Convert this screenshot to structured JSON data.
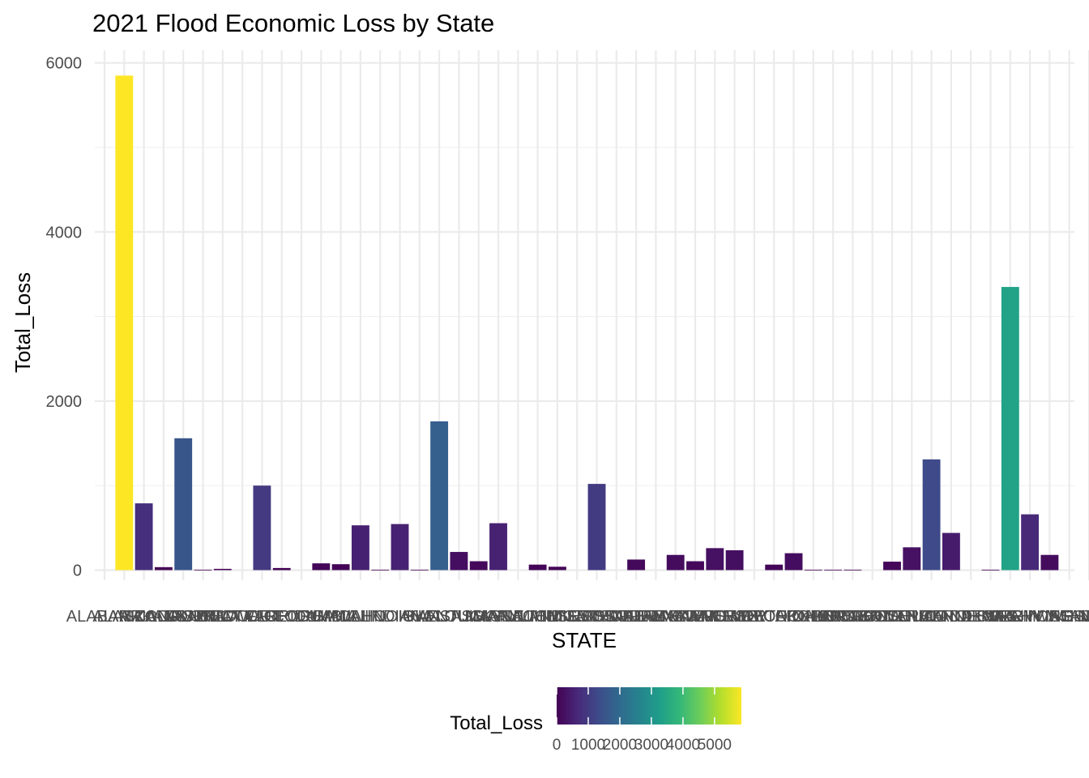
{
  "chart_data": {
    "type": "bar",
    "title": "2021 Flood Economic Loss by State",
    "xlabel": "STATE",
    "ylabel": "Total_Loss",
    "ylim": [
      -120,
      6150
    ],
    "y_ticks": [
      0,
      2000,
      4000,
      6000
    ],
    "grid": true,
    "categories": [
      "ALABAMA",
      "ALASKA",
      "ARIZONA",
      "ARKANSAS",
      "CALIFORNIA",
      "COLORADO",
      "CONNECTICUT",
      "DELAWARE",
      "DISTRICT OF COLUMBIA",
      "FLORIDA",
      "GEORGIA",
      "GUAM",
      "HAWAII",
      "IDAHO",
      "ILLINOIS",
      "INDIANA",
      "IOWA",
      "KANSAS",
      "KENTUCKY",
      "LOUISIANA",
      "MAINE",
      "MARYLAND",
      "MASSACHUSETTS",
      "MICHIGAN",
      "MINNESOTA",
      "MISSISSIPPI",
      "MISSOURI",
      "MONTANA",
      "NEBRASKA",
      "NEVADA",
      "NEW HAMPSHIRE",
      "NEW JERSEY",
      "NEW MEXICO",
      "NEW YORK",
      "NORTH CAROLINA",
      "NORTH DAKOTA",
      "OHIO",
      "OKLAHOMA",
      "OREGON",
      "PENNSYLVANIA",
      "PUERTO RICO",
      "RHODE ISLAND",
      "SOUTH CAROLINA",
      "SOUTH DAKOTA",
      "TENNESSEE",
      "TEXAS",
      "UTAH",
      "VERMONT",
      "VIRGIN ISLANDS",
      "VIRGINIA",
      "WASHINGTON",
      "WEST VIRGINIA",
      "WISCONSIN",
      "WYOMING"
    ],
    "values": [
      0,
      5850,
      790,
      35,
      1560,
      5,
      15,
      0,
      1000,
      25,
      0,
      80,
      70,
      530,
      5,
      545,
      5,
      1760,
      215,
      105,
      555,
      0,
      65,
      40,
      0,
      1020,
      0,
      125,
      0,
      180,
      105,
      260,
      235,
      0,
      65,
      200,
      5,
      5,
      5,
      0,
      100,
      270,
      1310,
      440,
      0,
      5,
      3350,
      660,
      180,
      0,
      0,
      0,
      0,
      0
    ],
    "legend": {
      "title": "Total_Loss",
      "placement": "bottom",
      "type": "colorbar",
      "palette": [
        "#440154",
        "#482878",
        "#3E4A89",
        "#31688E",
        "#26828E",
        "#1F9E89",
        "#35B779",
        "#6DCD59",
        "#B4DE2C",
        "#FDE725"
      ],
      "ticks": [
        0,
        1000,
        2000,
        3000,
        4000,
        5000
      ],
      "tick_labels": [
        "0",
        "1000",
        "2000",
        "3000",
        "4000",
        "5000"
      ],
      "range": [
        0,
        5850
      ]
    }
  }
}
